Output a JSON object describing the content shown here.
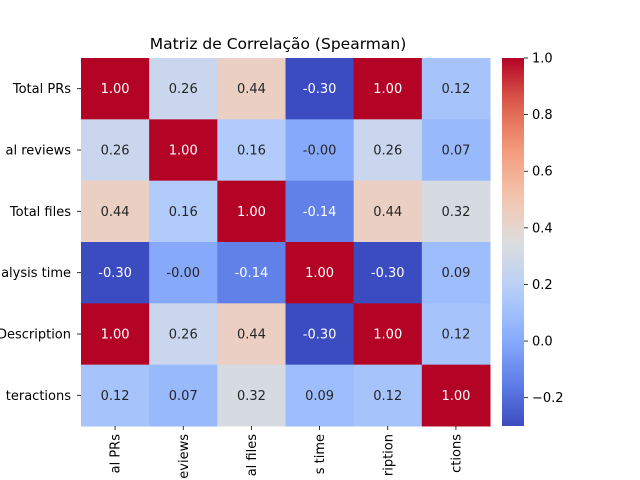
{
  "chart_data": {
    "type": "heatmap",
    "title": "Matriz de Correlação (Spearman)",
    "row_labels": [
      "Total PRs",
      "al reviews",
      "Total files",
      "alysis time",
      "Description",
      "teractions"
    ],
    "col_labels": [
      "al PRs",
      "eviews",
      "al files",
      "s time",
      "ription",
      "ctions"
    ],
    "values": [
      [
        1.0,
        0.26,
        0.44,
        -0.3,
        1.0,
        0.12
      ],
      [
        0.26,
        1.0,
        0.16,
        -0.0,
        0.26,
        0.07
      ],
      [
        0.44,
        0.16,
        1.0,
        -0.14,
        0.44,
        0.32
      ],
      [
        -0.3,
        -0.0,
        -0.14,
        1.0,
        -0.3,
        0.09
      ],
      [
        1.0,
        0.26,
        0.44,
        -0.3,
        1.0,
        0.12
      ],
      [
        0.12,
        0.07,
        0.32,
        0.09,
        0.12,
        1.0
      ]
    ],
    "value_labels": [
      [
        "1.00",
        "0.26",
        "0.44",
        "-0.30",
        "1.00",
        "0.12"
      ],
      [
        "0.26",
        "1.00",
        "0.16",
        "-0.00",
        "0.26",
        "0.07"
      ],
      [
        "0.44",
        "0.16",
        "1.00",
        "-0.14",
        "0.44",
        "0.32"
      ],
      [
        "-0.30",
        "-0.00",
        "-0.14",
        "1.00",
        "-0.30",
        "0.09"
      ],
      [
        "1.00",
        "0.26",
        "0.44",
        "-0.30",
        "1.00",
        "0.12"
      ],
      [
        "0.12",
        "0.07",
        "0.32",
        "0.09",
        "0.12",
        "1.00"
      ]
    ],
    "colormap": "coolwarm",
    "vmin": -0.3,
    "vmax": 1.0,
    "colorbar_ticks": [
      1.0,
      0.8,
      0.6,
      0.4,
      0.2,
      0.0,
      -0.2
    ],
    "colorbar_tick_labels": [
      "1.0",
      "0.8",
      "0.6",
      "0.4",
      "0.2",
      "0.0",
      "−0.2"
    ],
    "grid": false
  }
}
